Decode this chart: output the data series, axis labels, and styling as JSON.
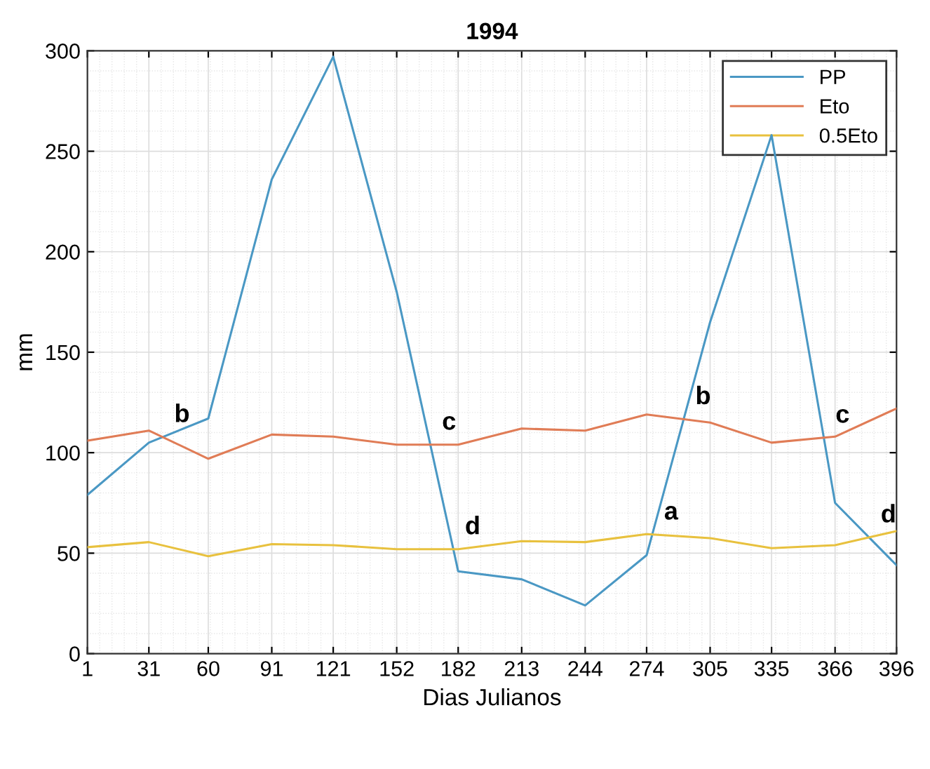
{
  "chart_data": {
    "type": "line",
    "title": "1994",
    "xlabel": "Dias Julianos",
    "ylabel": "mm",
    "x": [
      1,
      31,
      60,
      91,
      121,
      152,
      182,
      213,
      244,
      274,
      305,
      335,
      366,
      396
    ],
    "series": [
      {
        "name": "PP",
        "color": "#4a98c4",
        "values": [
          79,
          105,
          117,
          236,
          297,
          180,
          41,
          37,
          24,
          49,
          165,
          258,
          75,
          44
        ]
      },
      {
        "name": "Eto",
        "color": "#e07c56",
        "values": [
          106,
          111,
          97,
          109,
          108,
          104,
          104,
          112,
          111,
          119,
          115,
          105,
          108,
          122
        ]
      },
      {
        "name": "0.5Eto",
        "color": "#e8c13e",
        "values": [
          53,
          55.5,
          48.5,
          54.5,
          54,
          52,
          52,
          56,
          55.5,
          59.5,
          57.5,
          52.5,
          54,
          61
        ]
      }
    ],
    "xlim": [
      1,
      396
    ],
    "xticks": [
      1,
      31,
      60,
      91,
      121,
      152,
      182,
      213,
      244,
      274,
      305,
      335,
      366,
      396
    ],
    "ylim": [
      0,
      300
    ],
    "yticks": [
      0,
      50,
      100,
      150,
      200,
      250,
      300
    ],
    "grid": true,
    "legend": "top right",
    "annotations": [
      {
        "text": "b",
        "x": 37.7,
        "y": 107.8
      },
      {
        "text": "c",
        "x": 168.4,
        "y": 104
      },
      {
        "text": "d",
        "x": 179.6,
        "y": 52
      },
      {
        "text": "a",
        "x": 276.8,
        "y": 59.3
      },
      {
        "text": "b",
        "x": 292.1,
        "y": 116.7
      },
      {
        "text": "c",
        "x": 360.5,
        "y": 107.5
      },
      {
        "text": "d",
        "x": 382.6,
        "y": 57.9
      }
    ]
  }
}
